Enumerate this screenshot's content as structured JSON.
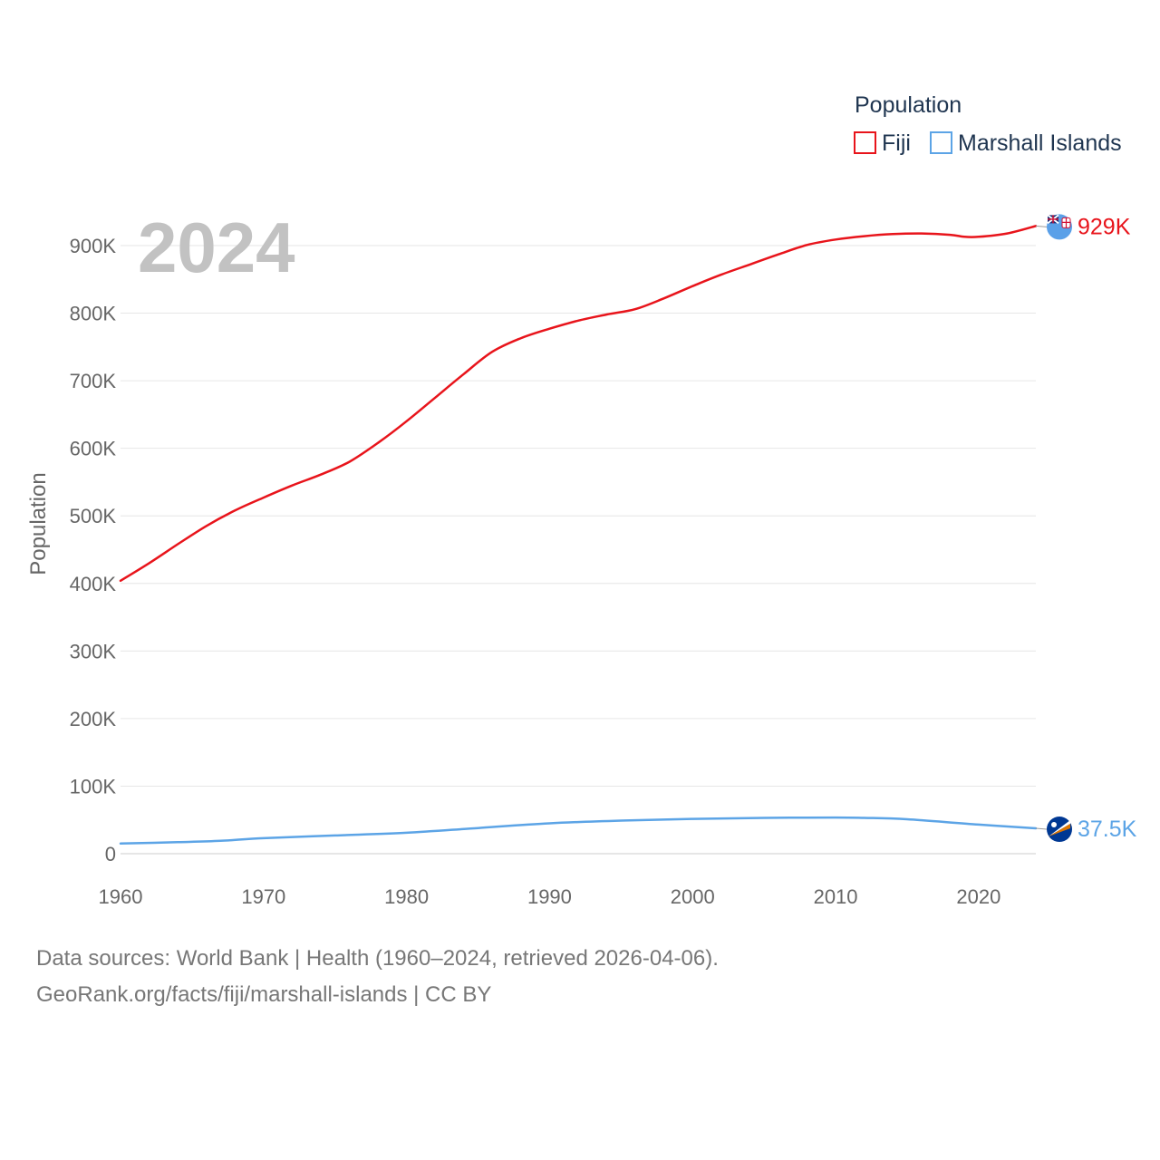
{
  "chart_data": {
    "type": "line",
    "current_year_label": "2024",
    "ylabel": "Population",
    "xlim": [
      1960,
      2024
    ],
    "ylim": [
      0,
      900000
    ],
    "x_ticks": [
      1960,
      1970,
      1980,
      1990,
      2000,
      2010,
      2020
    ],
    "x_tick_labels": [
      "1960",
      "1970",
      "1980",
      "1990",
      "2000",
      "2010",
      "2020"
    ],
    "y_ticks": [
      0,
      100000,
      200000,
      300000,
      400000,
      500000,
      600000,
      700000,
      800000,
      900000
    ],
    "y_tick_labels": [
      "0",
      "100K",
      "200K",
      "300K",
      "400K",
      "500K",
      "600K",
      "700K",
      "800K",
      "900K"
    ],
    "legend": {
      "title": "Population",
      "position": "top-right"
    },
    "series": [
      {
        "name": "Fiji",
        "color": "#e8141b",
        "end_label": "929K",
        "flag_icon": "fiji-flag-icon",
        "points": [
          [
            1960,
            404000
          ],
          [
            1962,
            430000
          ],
          [
            1964,
            458000
          ],
          [
            1966,
            485000
          ],
          [
            1968,
            508000
          ],
          [
            1970,
            527000
          ],
          [
            1972,
            545000
          ],
          [
            1974,
            561000
          ],
          [
            1976,
            580000
          ],
          [
            1978,
            608000
          ],
          [
            1980,
            640000
          ],
          [
            1982,
            675000
          ],
          [
            1984,
            710000
          ],
          [
            1986,
            743000
          ],
          [
            1988,
            763000
          ],
          [
            1990,
            777000
          ],
          [
            1992,
            789000
          ],
          [
            1994,
            798000
          ],
          [
            1996,
            806000
          ],
          [
            1998,
            822000
          ],
          [
            2000,
            840000
          ],
          [
            2002,
            857000
          ],
          [
            2004,
            872000
          ],
          [
            2006,
            887000
          ],
          [
            2008,
            901000
          ],
          [
            2010,
            909000
          ],
          [
            2012,
            914000
          ],
          [
            2014,
            917000
          ],
          [
            2016,
            918000
          ],
          [
            2018,
            916000
          ],
          [
            2019,
            913000
          ],
          [
            2020,
            913000
          ],
          [
            2022,
            918000
          ],
          [
            2024,
            929000
          ]
        ]
      },
      {
        "name": "Marshall Islands",
        "color": "#5ca4e6",
        "end_label": "37.5K",
        "flag_icon": "marshall-islands-flag-icon",
        "points": [
          [
            1960,
            15000
          ],
          [
            1964,
            17000
          ],
          [
            1967,
            19000
          ],
          [
            1970,
            23000
          ],
          [
            1975,
            27000
          ],
          [
            1980,
            31000
          ],
          [
            1985,
            38000
          ],
          [
            1990,
            45000
          ],
          [
            1995,
            49000
          ],
          [
            2000,
            51500
          ],
          [
            2005,
            53000
          ],
          [
            2010,
            53500
          ],
          [
            2012,
            53000
          ],
          [
            2015,
            51000
          ],
          [
            2020,
            43000
          ],
          [
            2024,
            37500
          ]
        ]
      }
    ]
  },
  "footer": {
    "line1": "Data sources: World Bank | Health (1960–2024, retrieved 2026-04-06).",
    "line2": "GeoRank.org/facts/fiji/marshall-islands | CC BY"
  }
}
